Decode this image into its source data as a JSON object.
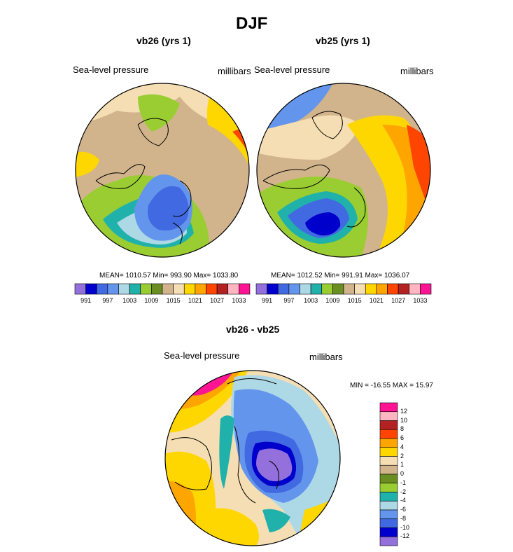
{
  "figure": {
    "title": "DJF"
  },
  "colors": {
    "abs_bar": [
      "#9370db",
      "#0000cd",
      "#4169e1",
      "#6495ed",
      "#add8e6",
      "#20b2aa",
      "#9acd32",
      "#6b8e23",
      "#d2b48c",
      "#f5deb3",
      "#ffd700",
      "#ffa500",
      "#ff4500",
      "#b22222",
      "#ffb6c1",
      "#ff1493"
    ],
    "diff_bar": [
      "#9370db",
      "#0000cd",
      "#4169e1",
      "#6495ed",
      "#add8e6",
      "#20b2aa",
      "#9acd32",
      "#6b8e23",
      "#d2b48c",
      "#f5deb3",
      "#ffd700",
      "#ffa500",
      "#ff4500",
      "#b22222",
      "#ffb6c1",
      "#ff1493"
    ]
  },
  "chart_data": [
    {
      "type": "heatmap",
      "title": "vb26 (yrs 1)",
      "left_label": "Sea-level pressure",
      "right_label": "millibars",
      "stats_text": "MEAN= 1010.57  Min= 993.90  Max= 1033.80",
      "mean": 1010.57,
      "min": 993.9,
      "max": 1033.8,
      "colorbar_ticks": [
        "991",
        "997",
        "1003",
        "1009",
        "1015",
        "1021",
        "1027",
        "1033"
      ]
    },
    {
      "type": "heatmap",
      "title": "vb25 (yrs 1)",
      "left_label": "Sea-level pressure",
      "right_label": "millibars",
      "stats_text": "MEAN= 1012.52  Min= 991.91  Max= 1036.07",
      "mean": 1012.52,
      "min": 991.91,
      "max": 1036.07,
      "colorbar_ticks": [
        "991",
        "997",
        "1003",
        "1009",
        "1015",
        "1021",
        "1027",
        "1033"
      ]
    },
    {
      "type": "heatmap",
      "title": "vb26 - vb25",
      "left_label": "Sea-level pressure",
      "right_label": "millibars",
      "stats_text": "MIN = -16.55 MAX =  15.97",
      "min": -16.55,
      "max": 15.97,
      "colorbar_ticks": [
        "12",
        "10",
        "8",
        "6",
        "4",
        "2",
        "1",
        "0",
        "-1",
        "-2",
        "-4",
        "-6",
        "-8",
        "-10",
        "-12"
      ]
    }
  ]
}
